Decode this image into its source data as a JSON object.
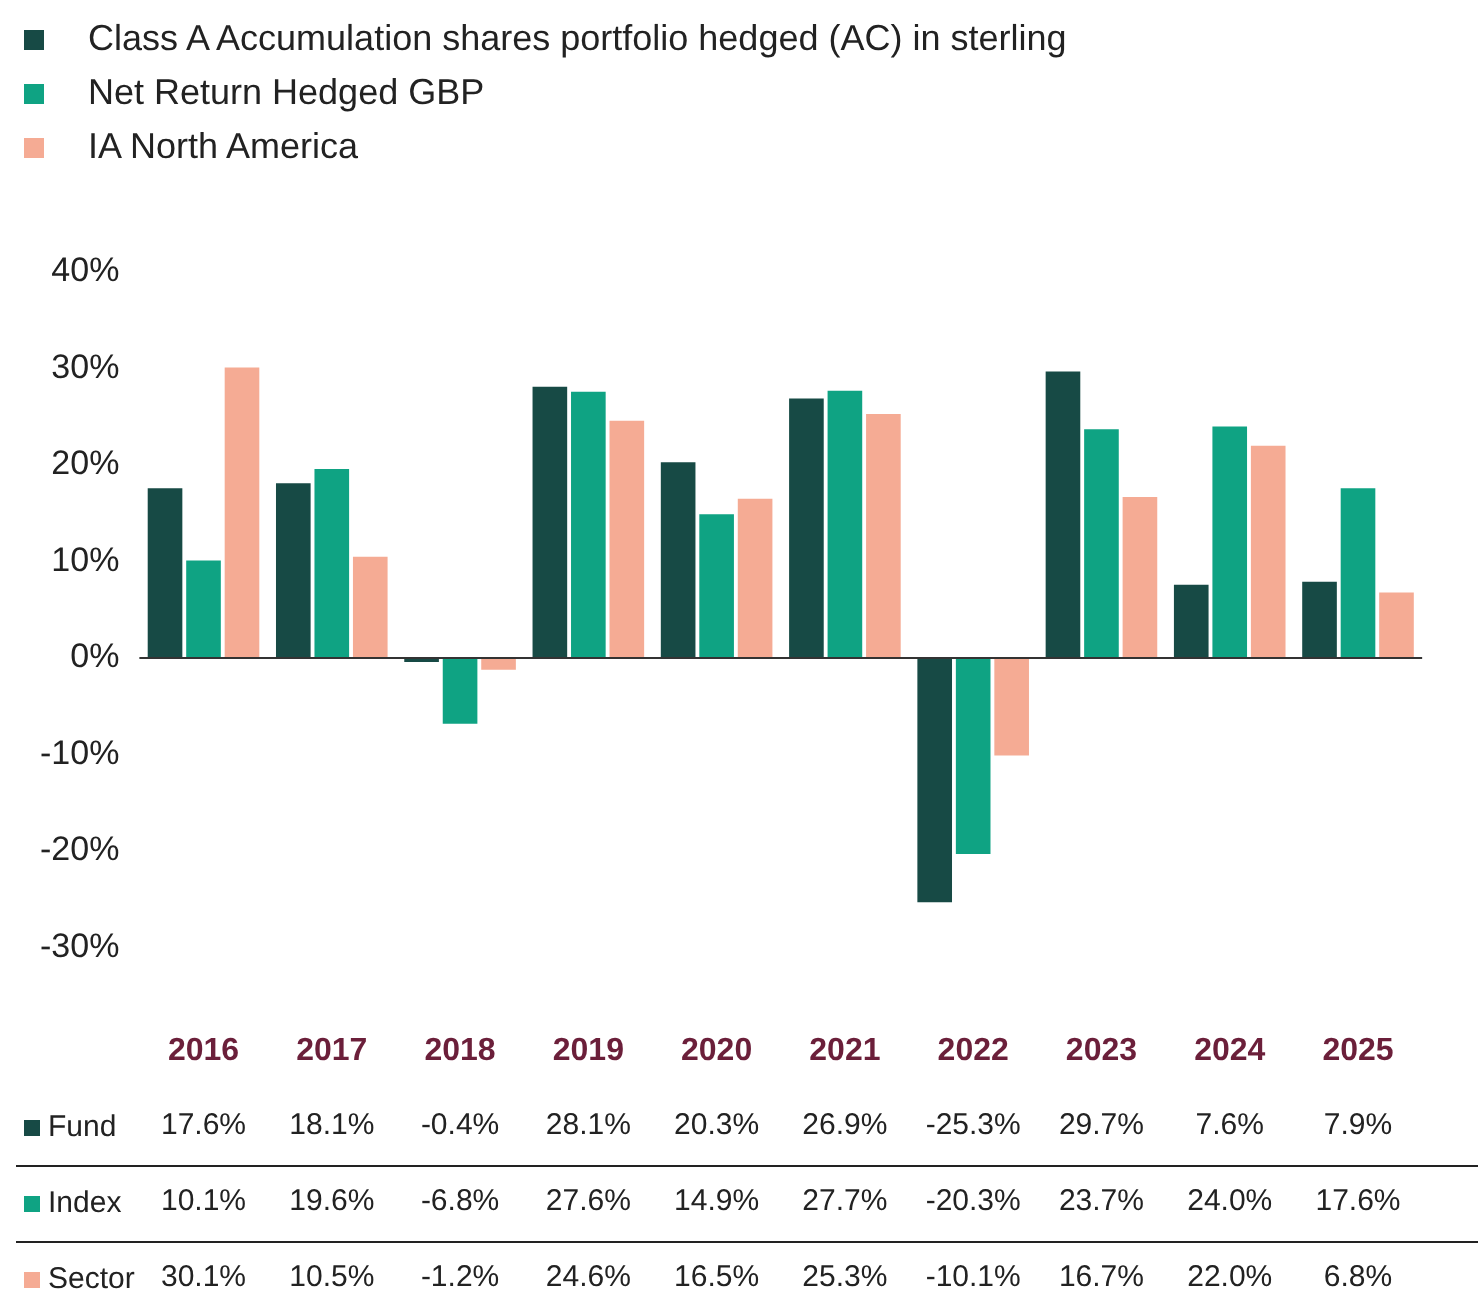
{
  "chart_data": {
    "type": "bar",
    "categories": [
      "2016",
      "2017",
      "2018",
      "2019",
      "2020",
      "2021",
      "2022",
      "2023",
      "2024",
      "2025"
    ],
    "series": [
      {
        "name": "Class A Accumulation shares portfolio hedged (AC) in sterling",
        "color": "#174a45",
        "values": [
          17.6,
          18.1,
          -0.4,
          28.1,
          20.3,
          26.9,
          -25.3,
          29.7,
          7.6,
          7.9
        ],
        "value_labels": [
          "17.6%",
          "18.1%",
          "-0.4%",
          "28.1%",
          "20.3%",
          "26.9%",
          "-25.3%",
          "29.7%",
          "7.6%",
          "7.9%"
        ]
      },
      {
        "name": "Net Return Hedged GBP",
        "color": "#0fa383",
        "values": [
          10.1,
          19.6,
          -6.8,
          27.6,
          14.9,
          27.7,
          -20.3,
          23.7,
          24.0,
          17.6
        ],
        "value_labels": [
          "10.1%",
          "19.6%",
          "-6.8%",
          "27.6%",
          "14.9%",
          "27.7%",
          "-20.3%",
          "23.7%",
          "24.0%",
          "17.6%"
        ]
      },
      {
        "name": "IA North America",
        "color": "#f5ab94",
        "values": [
          30.1,
          10.5,
          -1.2,
          24.6,
          16.5,
          25.3,
          -10.1,
          16.7,
          22.0,
          6.8
        ],
        "value_labels": [
          "30.1%",
          "10.5%",
          "-1.2%",
          "24.6%",
          "16.5%",
          "25.3%",
          "-10.1%",
          "16.7%",
          "22.0%",
          "6.8%"
        ]
      }
    ],
    "annotations": [
      "Fund",
      "Index",
      "Sector"
    ],
    "ylim": [
      -30,
      40
    ],
    "yticks": [
      {
        "value": -30,
        "label": "-30%"
      },
      {
        "value": -20,
        "label": "-20%"
      },
      {
        "value": -10,
        "label": "-10%"
      },
      {
        "value": 0,
        "label": "0%"
      },
      {
        "value": 10,
        "label": "10%"
      },
      {
        "value": 20,
        "label": "20%"
      },
      {
        "value": 30,
        "label": "30%"
      },
      {
        "value": 40,
        "label": "40%"
      }
    ],
    "ref_lines": [
      {
        "axis": "y",
        "value": 0,
        "color": "#333333"
      }
    ],
    "grid": false,
    "legend": "top left"
  }
}
